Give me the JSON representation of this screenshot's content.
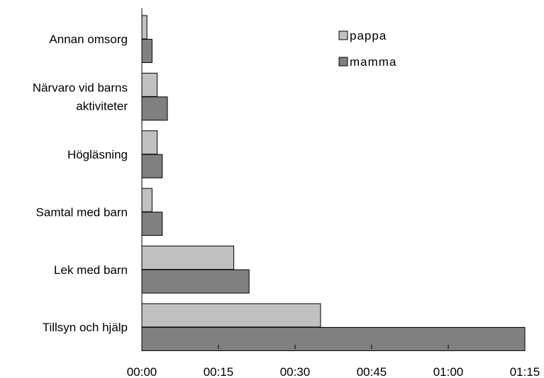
{
  "chart_data": {
    "type": "bar",
    "orientation": "horizontal",
    "categories": [
      [
        "Annan omsorg"
      ],
      [
        "Närvaro vid barns",
        "aktiviteter"
      ],
      [
        "Högläsning"
      ],
      [
        "Samtal med barn"
      ],
      [
        "Lek med barn"
      ],
      [
        "Tillsyn och hjälp"
      ]
    ],
    "series": [
      {
        "name": "pappa",
        "color": "#c0c0c0",
        "values_minutes": [
          1,
          3,
          3,
          2,
          18,
          35
        ]
      },
      {
        "name": "mamma",
        "color": "#808080",
        "values_minutes": [
          2,
          5,
          4,
          4,
          21,
          75
        ]
      }
    ],
    "x_ticks": [
      {
        "value": 0,
        "label": "00:00"
      },
      {
        "value": 15,
        "label": "00:15"
      },
      {
        "value": 30,
        "label": "00:30"
      },
      {
        "value": 45,
        "label": "00:45"
      },
      {
        "value": 60,
        "label": "01:00"
      },
      {
        "value": 75,
        "label": "01:15"
      }
    ],
    "xlim_minutes": [
      0,
      75
    ],
    "legend_position": "top-right",
    "grid": false
  }
}
